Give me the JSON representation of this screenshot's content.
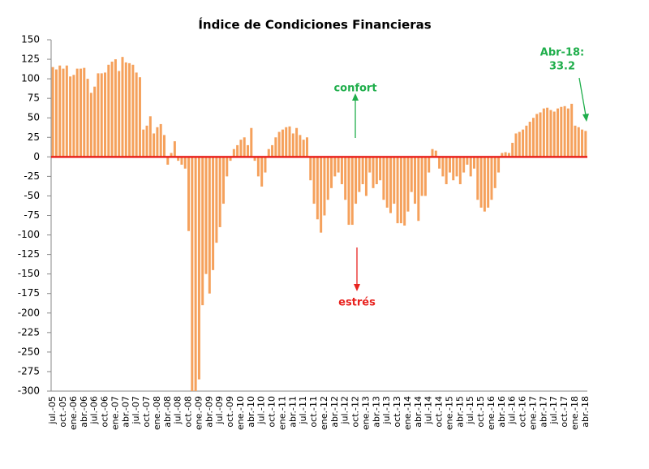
{
  "chart_data": {
    "type": "bar",
    "title": "Índice de Condiciones Financieras",
    "categories": [
      "jul.-05",
      null,
      null,
      "oct.-05",
      null,
      null,
      "ene.-06",
      null,
      null,
      "abr.-06",
      null,
      null,
      "jul.-06",
      null,
      null,
      "oct.-06",
      null,
      null,
      "ene.-07",
      null,
      null,
      "abr.-07",
      null,
      null,
      "jul.-07",
      null,
      null,
      "oct.-07",
      null,
      null,
      "ene.-08",
      null,
      null,
      "abr.-08",
      null,
      null,
      "jul.-08",
      null,
      null,
      "oct.-08",
      null,
      null,
      "ene.-09",
      null,
      null,
      "abr.-09",
      null,
      null,
      "jul.-09",
      null,
      null,
      "oct.-09",
      null,
      null,
      "ene.-10",
      null,
      null,
      "abr.-10",
      null,
      null,
      "jul.-10",
      null,
      null,
      "oct.-10",
      null,
      null,
      "ene.-11",
      null,
      null,
      "abr.-11",
      null,
      null,
      "jul.-11",
      null,
      null,
      "oct.-11",
      null,
      null,
      "ene.-12",
      null,
      null,
      "abr.-12",
      null,
      null,
      "jul.-12",
      null,
      null,
      "oct.-12",
      null,
      null,
      "ene.-13",
      null,
      null,
      "abr.-13",
      null,
      null,
      "jul.-13",
      null,
      null,
      "oct.-13",
      null,
      null,
      "ene.-14",
      null,
      null,
      "abr.-14",
      null,
      null,
      "jul.-14",
      null,
      null,
      "oct.-14",
      null,
      null,
      "ene.-15",
      null,
      null,
      "abr.-15",
      null,
      null,
      "jul.-15",
      null,
      null,
      "oct.-15",
      null,
      null,
      "ene.-16",
      null,
      null,
      "abr.-16",
      null,
      null,
      "jul.-16",
      null,
      null,
      "oct.-16",
      null,
      null,
      "ene.-17",
      null,
      null,
      "abr.-17",
      null,
      null,
      "jul.-17",
      null,
      null,
      "oct.-17",
      null,
      null,
      "ene.-18",
      null,
      null,
      "abr.-18"
    ],
    "values": [
      115,
      112,
      117,
      113,
      117,
      103,
      105,
      113,
      113,
      114,
      100,
      82,
      90,
      107,
      107,
      108,
      118,
      122,
      125,
      110,
      128,
      121,
      120,
      118,
      108,
      102,
      35,
      40,
      52,
      30,
      38,
      42,
      28,
      -10,
      5,
      20,
      -5,
      -10,
      -15,
      -95,
      -300,
      -300,
      -285,
      -190,
      -150,
      -175,
      -145,
      -110,
      -90,
      -60,
      -25,
      -5,
      10,
      15,
      22,
      25,
      15,
      37,
      -5,
      -25,
      -38,
      -20,
      10,
      15,
      25,
      32,
      35,
      38,
      39,
      30,
      37,
      28,
      22,
      25,
      -30,
      -60,
      -80,
      -97,
      -75,
      -55,
      -40,
      -25,
      -20,
      -35,
      -55,
      -87,
      -87,
      -60,
      -45,
      -35,
      -50,
      -20,
      -40,
      -35,
      -30,
      -55,
      -65,
      -72,
      -60,
      -85,
      -85,
      -88,
      -70,
      -45,
      -60,
      -82,
      -50,
      -50,
      -20,
      10,
      8,
      -15,
      -25,
      -35,
      -20,
      -30,
      -25,
      -35,
      -20,
      -10,
      -25,
      -15,
      -55,
      -65,
      -70,
      -65,
      -55,
      -40,
      -20,
      5,
      6,
      5,
      18,
      30,
      32,
      35,
      40,
      45,
      50,
      55,
      57,
      62,
      63,
      60,
      58,
      62,
      64,
      65,
      62,
      68,
      40,
      38,
      35,
      33.2
    ],
    "color": "#f5a15c",
    "zero_line_color": "#e8231f",
    "ylim": [
      -300,
      150
    ],
    "yticks": [
      150,
      125,
      100,
      75,
      50,
      25,
      0,
      -25,
      -50,
      -75,
      -100,
      -125,
      -150,
      -175,
      -200,
      -225,
      -250,
      -275,
      -300
    ],
    "annotations": [
      {
        "text": "confort",
        "color": "#1fae4b"
      },
      {
        "text": "estrés",
        "color": "#e8231f"
      },
      {
        "text": [
          "Abr-18:",
          "33.2"
        ],
        "color": "#1fae4b"
      }
    ]
  }
}
